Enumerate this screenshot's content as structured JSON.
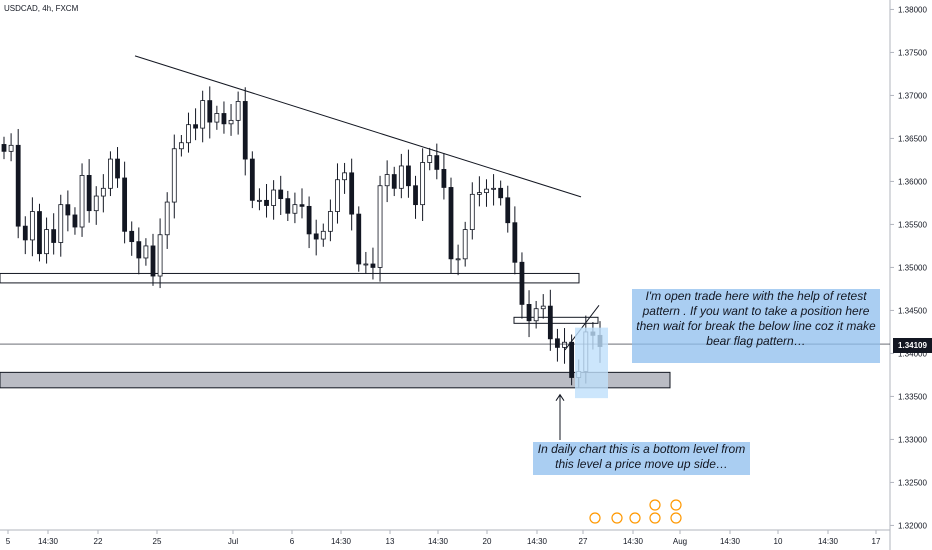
{
  "header": {
    "symbol_label": "USDCAD, 4h, FXCM"
  },
  "chart_data": {
    "type": "candlestick",
    "title": "USDCAD, 4h, FXCM",
    "y_ticks": [
      "1.38000",
      "1.37500",
      "1.37000",
      "1.36500",
      "1.36000",
      "1.35500",
      "1.35000",
      "1.34500",
      "1.34000",
      "1.33500",
      "1.33000",
      "1.32500",
      "1.32000"
    ],
    "x_ticks": [
      "5",
      "14:30",
      "22",
      "25",
      "Jul",
      "6",
      "14:30",
      "13",
      "14:30",
      "20",
      "14:30",
      "27",
      "14:30",
      "Aug",
      "14:30",
      "10",
      "14:30",
      "17"
    ],
    "ylim": [
      1.3197,
      1.3804
    ],
    "current_price": {
      "value": 1.34109,
      "label": "1.34109"
    },
    "closes": [
      1.3635,
      1.3642,
      1.3548,
      1.3532,
      1.3565,
      1.3516,
      1.3544,
      1.3529,
      1.3573,
      1.3561,
      1.3547,
      1.3607,
      1.3566,
      1.3583,
      1.3592,
      1.3626,
      1.3604,
      1.3542,
      1.353,
      1.3511,
      1.3525,
      1.349,
      1.3538,
      1.3576,
      1.3638,
      1.3645,
      1.3666,
      1.3662,
      1.3694,
      1.3669,
      1.3679,
      1.3667,
      1.3671,
      1.3693,
      1.3626,
      1.3578,
      1.3578,
      1.3572,
      1.359,
      1.358,
      1.3563,
      1.3573,
      1.3571,
      1.3539,
      1.3533,
      1.3542,
      1.3565,
      1.3602,
      1.361,
      1.3562,
      1.3504,
      1.3504,
      1.35,
      1.3595,
      1.3608,
      1.3592,
      1.3618,
      1.3595,
      1.3573,
      1.3622,
      1.363,
      1.3614,
      1.3593,
      1.351,
      1.351,
      1.3544,
      1.3585,
      1.3587,
      1.3591,
      1.3592,
      1.3581,
      1.3552,
      1.3506,
      1.3457,
      1.3438,
      1.3452,
      1.3455,
      1.3417,
      1.3407,
      1.3413,
      1.3372,
      1.3379,
      1.3425,
      1.3421,
      1.3408
    ],
    "trendlines": [
      {
        "from": [
          1.3746
        ],
        "to": [
          1.3582
        ]
      },
      {
        "from": [
          1.3404
        ],
        "to": [
          1.3456
        ]
      }
    ],
    "zones": [
      {
        "top": 1.3493,
        "bottom": 1.3482
      },
      {
        "top": 1.3442,
        "bottom": 1.3435
      },
      {
        "top": 1.3378,
        "bottom": 1.336
      }
    ],
    "annotations": [
      "I'm open trade here with the help of retest pattern . If you want to take a position here then wait for break the below line coz it make   bear flag pattern…",
      "In daily chart this is a bottom level from this level a price move up side…"
    ]
  },
  "colors": {
    "bull": "#131722",
    "bear": "#131722",
    "grid": "#e0e3eb",
    "note_bg": "#8dbeee",
    "zone_fill": "#d1d4dc"
  }
}
